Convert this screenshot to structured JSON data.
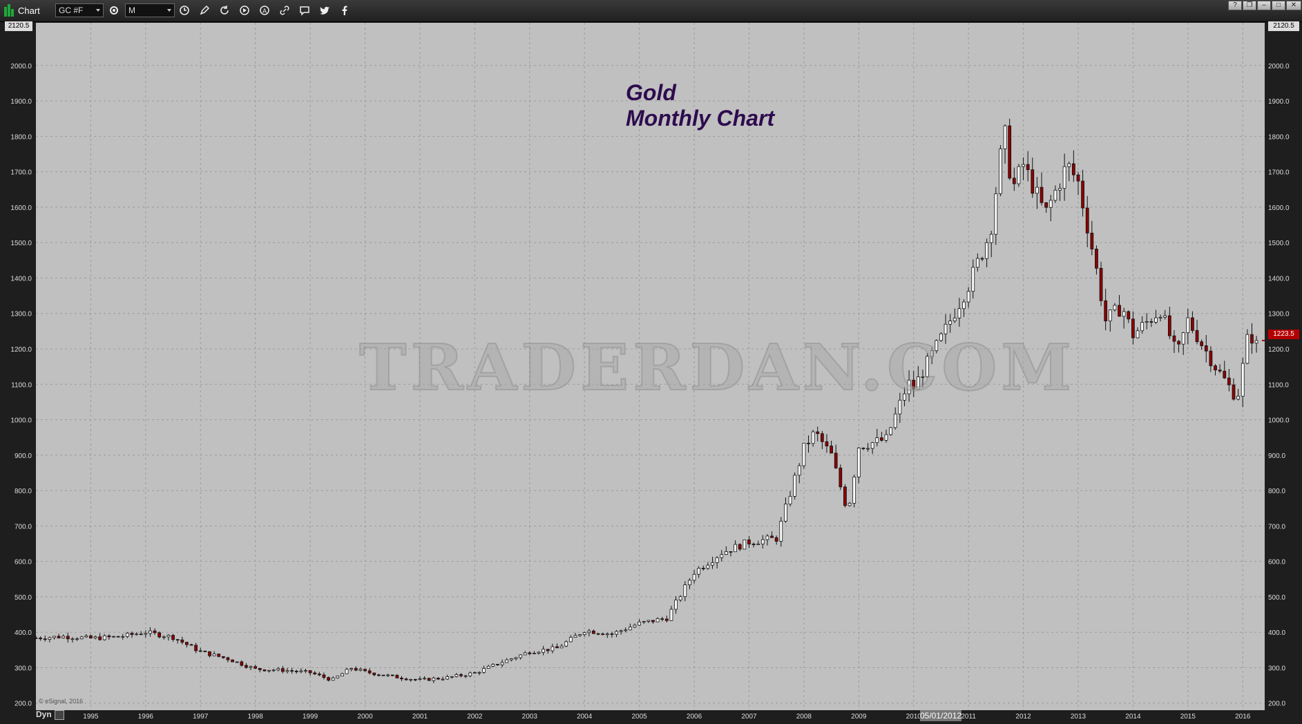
{
  "app": {
    "title": "Chart",
    "symbol": "GC #F",
    "interval": "M"
  },
  "toolbar": {
    "icons": [
      "settings-icon",
      "clock-icon",
      "pencil-icon",
      "refresh-icon",
      "play-icon",
      "alert-icon",
      "link-icon",
      "comment-icon",
      "twitter-icon",
      "facebook-icon"
    ]
  },
  "window_controls": [
    "?",
    "❐",
    "–",
    "□",
    "✕"
  ],
  "footer": {
    "copyright": "© eSignal, 2016",
    "dyn_label": "Dyn",
    "cursor_date": "05/01/2012"
  },
  "annotations": {
    "title_line1": "Gold",
    "title_line2": "Monthly Chart",
    "watermark": "TRADERDAN.COM"
  },
  "colors": {
    "plot_bg": "#c0c0c0",
    "up_candle": "#ffffff",
    "down_candle": "#8b0000",
    "title": "#2e0b4f",
    "last_price": "#b40000"
  },
  "chart_data": {
    "type": "candlestick",
    "title": "Gold Monthly Chart",
    "symbol": "GC #F",
    "interval": "monthly",
    "ylim": [
      180,
      2120.5
    ],
    "y_top_label": "2120.5",
    "y_ticks": [
      200.0,
      300.0,
      400.0,
      500.0,
      600.0,
      700.0,
      800.0,
      900.0,
      1000.0,
      1100.0,
      1200.0,
      1300.0,
      1400.0,
      1500.0,
      1600.0,
      1700.0,
      1800.0,
      1900.0,
      2000.0
    ],
    "x_start": 1994.0,
    "x_end": 2016.4,
    "x_ticks": [
      1995,
      1996,
      1997,
      1998,
      1999,
      2000,
      2001,
      2002,
      2003,
      2004,
      2005,
      2006,
      2007,
      2008,
      2009,
      2010,
      2011,
      2012,
      2013,
      2014,
      2015,
      2016
    ],
    "last_price": 1223.5,
    "grid": true,
    "monthly_closes": [
      [
        1994.0,
        384
      ],
      [
        1994.5,
        388
      ],
      [
        1995.0,
        383
      ],
      [
        1995.5,
        387
      ],
      [
        1996.0,
        400
      ],
      [
        1996.5,
        386
      ],
      [
        1997.0,
        345
      ],
      [
        1997.5,
        325
      ],
      [
        1998.0,
        296
      ],
      [
        1998.5,
        293
      ],
      [
        1999.0,
        286
      ],
      [
        1999.4,
        265
      ],
      [
        1999.75,
        299
      ],
      [
        2000.0,
        288
      ],
      [
        2000.5,
        275
      ],
      [
        2001.0,
        265
      ],
      [
        2001.5,
        272
      ],
      [
        2002.0,
        285
      ],
      [
        2002.5,
        316
      ],
      [
        2003.0,
        345
      ],
      [
        2003.5,
        355
      ],
      [
        2004.0,
        405
      ],
      [
        2004.5,
        395
      ],
      [
        2005.0,
        425
      ],
      [
        2005.5,
        440
      ],
      [
        2006.0,
        570
      ],
      [
        2006.5,
        625
      ],
      [
        2007.0,
        655
      ],
      [
        2007.5,
        665
      ],
      [
        2008.0,
        920
      ],
      [
        2008.2,
        965
      ],
      [
        2008.5,
        900
      ],
      [
        2008.8,
        740
      ],
      [
        2009.0,
        925
      ],
      [
        2009.5,
        945
      ],
      [
        2009.9,
        1105
      ],
      [
        2010.0,
        1090
      ],
      [
        2010.5,
        1230
      ],
      [
        2011.0,
        1380
      ],
      [
        2011.4,
        1530
      ],
      [
        2011.65,
        1820
      ],
      [
        2011.8,
        1650
      ],
      [
        2012.0,
        1720
      ],
      [
        2012.4,
        1580
      ],
      [
        2012.8,
        1720
      ],
      [
        2013.0,
        1670
      ],
      [
        2013.3,
        1450
      ],
      [
        2013.5,
        1280
      ],
      [
        2013.8,
        1320
      ],
      [
        2014.0,
        1240
      ],
      [
        2014.5,
        1310
      ],
      [
        2014.8,
        1180
      ],
      [
        2015.0,
        1280
      ],
      [
        2015.5,
        1150
      ],
      [
        2015.9,
        1060
      ],
      [
        2016.1,
        1240
      ],
      [
        2016.25,
        1223.5
      ]
    ]
  }
}
